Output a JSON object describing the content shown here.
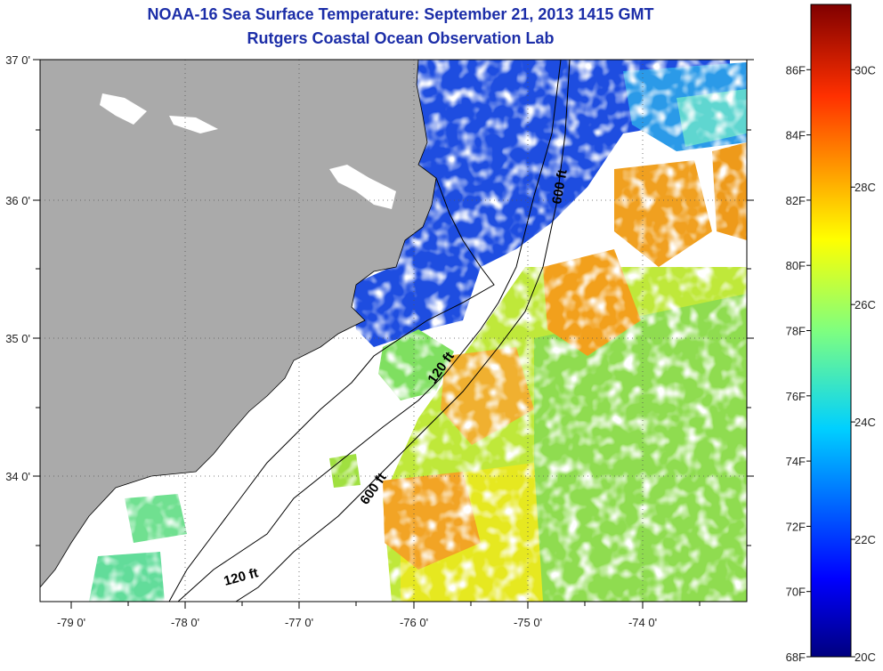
{
  "title": "NOAA-16 Sea Surface Temperature:  September 21, 2013 1415 GMT",
  "subtitle": "Rutgers Coastal Ocean Observation Lab",
  "lat_labels": [
    "37 0'",
    "36 0'",
    "35 0'",
    "34 0'"
  ],
  "lon_labels": [
    "-79 0'",
    "-78 0'",
    "-77 0'",
    "-76 0'",
    "-75 0'",
    "-74 0'"
  ],
  "contours": [
    "600 ft",
    "120 ft",
    "600 ft",
    "120 ft"
  ],
  "colorbar": {
    "f_labels": [
      "86F",
      "84F",
      "82F",
      "80F",
      "78F",
      "76F",
      "74F",
      "72F",
      "70F",
      "68F"
    ],
    "c_labels": [
      "30C",
      "28C",
      "26C",
      "24C",
      "22C",
      "20C"
    ]
  },
  "colors": {
    "land": "#aaaaaa",
    "cloud": "#ffffff",
    "cold": "#1e4de0",
    "mid": "#3ddc84",
    "warm_green": "#9fe040",
    "warm": "#f7a020",
    "title": "#1c2ea8"
  }
}
